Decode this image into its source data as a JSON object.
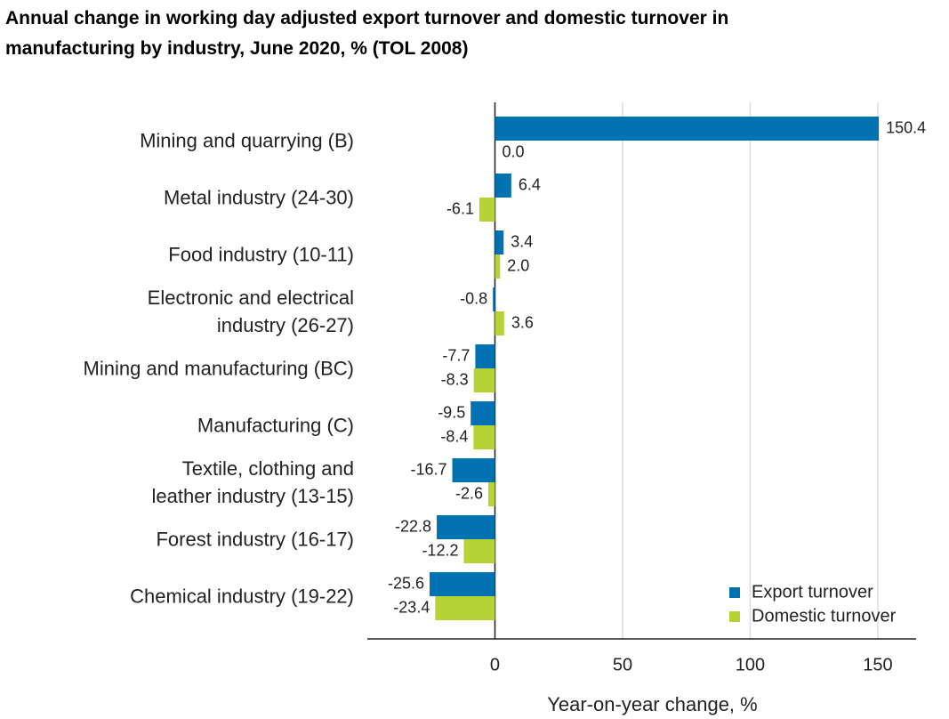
{
  "chart_data": {
    "type": "hbar",
    "title": "Annual change in working day adjusted export turnover and domestic turnover in\nmanufacturing by industry, June 2020, % (TOL 2008)",
    "categories": [
      "Mining and quarrying (B)",
      "Metal industry (24-30)",
      "Food industry (10-11)",
      "Electronic and electrical\nindustry (26-27)",
      "Mining and manufacturing (BC)",
      "Manufacturing (C)",
      "Textile, clothing and\nleather industry (13-15)",
      "Forest industry (16-17)",
      "Chemical industry (19-22)"
    ],
    "series": [
      {
        "name": "Export turnover",
        "color": "#0072b2",
        "values": [
          150.4,
          6.4,
          3.4,
          -0.8,
          -7.7,
          -9.5,
          -16.7,
          -22.8,
          -25.6
        ],
        "value_labels": [
          "150.4",
          "6.4",
          "3.4",
          "-0.8",
          "-7.7",
          "-9.5",
          "-16.7",
          "-22.8",
          "-25.6"
        ]
      },
      {
        "name": "Domestic turnover",
        "color": "#b5d334",
        "values": [
          0,
          -6.1,
          2,
          3.6,
          -8.3,
          -8.4,
          -2.6,
          -12.2,
          -23.4
        ],
        "value_labels": [
          "0.0",
          "-6.1",
          "2.0",
          "3.6",
          "-8.3",
          "-8.4",
          "-2.6",
          "-12.2",
          "-23.4"
        ]
      }
    ],
    "xlabel": "Year-on-year change, %",
    "xlim": [
      -50,
      165
    ],
    "xticks": [
      0,
      50,
      100,
      150
    ],
    "grid": true,
    "legend": "lower right"
  }
}
